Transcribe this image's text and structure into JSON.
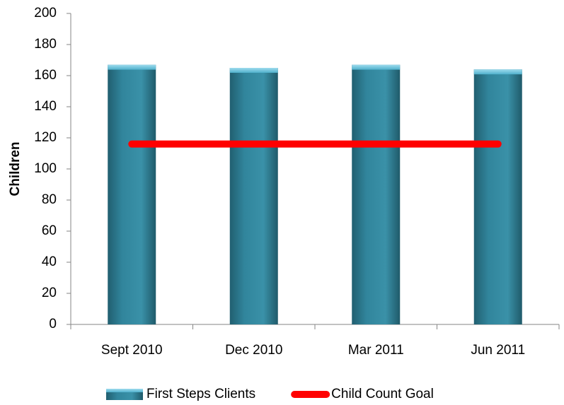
{
  "chart_data": {
    "type": "bar",
    "y_label": "Children",
    "categories": [
      "Sept 2010",
      "Dec 2010",
      "Mar 2011",
      "Jun 2011"
    ],
    "series": [
      {
        "name": "First Steps Clients",
        "type": "bar",
        "color": "#31859c",
        "values": [
          167,
          165,
          167,
          164
        ]
      },
      {
        "name": "Child Count Goal",
        "type": "line",
        "color": "#ff0000",
        "values": [
          116,
          116,
          116,
          116
        ]
      }
    ],
    "ylim": [
      0,
      200
    ],
    "yticks": [
      0,
      20,
      40,
      60,
      80,
      100,
      120,
      140,
      160,
      180,
      200
    ],
    "grid": false,
    "legend": "bottom"
  }
}
